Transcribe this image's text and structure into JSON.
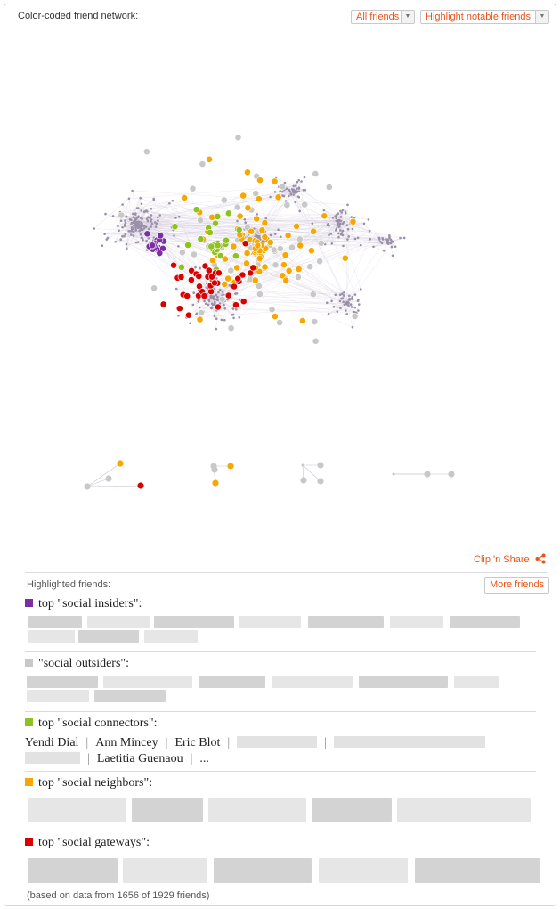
{
  "header": {
    "title": "Color-coded friend network:",
    "friends_dropdown": "All friends",
    "highlight_dropdown": "Highlight notable friends"
  },
  "colors": {
    "insider": "#7b2fa5",
    "outsider": "#c8c8c8",
    "connector": "#8dc21f",
    "neighbor": "#f7a800",
    "gateway": "#d90000",
    "accent": "#e8541c"
  },
  "clip_share": "Clip 'n Share",
  "highlighted": {
    "label": "Highlighted friends:",
    "more_button": "More friends",
    "categories": [
      {
        "key": "insider",
        "label": "top \"social insiders\":"
      },
      {
        "key": "outsider",
        "label": "\"social outsiders\":"
      },
      {
        "key": "connector",
        "label": "top \"social connectors\":",
        "names": [
          "Yendi Dial",
          "Ann Mincey",
          "Eric Blot",
          "Laetitia Guenaou",
          "..."
        ]
      },
      {
        "key": "neighbor",
        "label": "top \"social neighbors\":"
      },
      {
        "key": "gateway",
        "label": "top \"social gateways\":"
      }
    ]
  },
  "footer": "(based on data from 1656 of 1929 friends)"
}
